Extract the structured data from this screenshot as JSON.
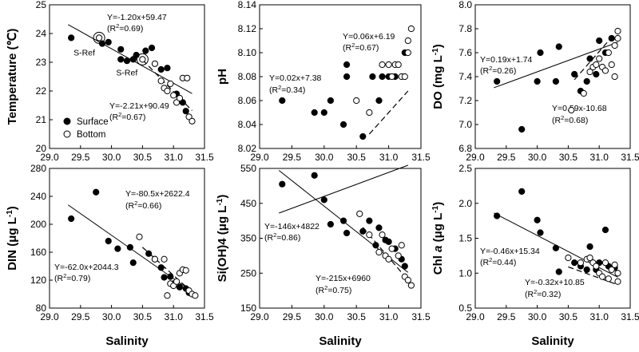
{
  "figure": {
    "x_axis_label": "Salinity"
  },
  "chart_data": [
    {
      "type": "scatter",
      "panel": "temperature",
      "ylabel": "Temperature (℃)",
      "xlabel": "Salinity",
      "xlim": [
        29.0,
        31.5
      ],
      "ylim": [
        20,
        25
      ],
      "xticks": [
        "29.0",
        "29.5",
        "30.0",
        "30.5",
        "31.0",
        "31.5"
      ],
      "yticks": [
        "20",
        "21",
        "22",
        "23",
        "24",
        "25"
      ],
      "series": [
        {
          "name": "Surface",
          "marker": "filled",
          "points": [
            [
              29.35,
              23.85
            ],
            [
              29.85,
              23.65
            ],
            [
              29.95,
              23.7
            ],
            [
              30.15,
              23.45
            ],
            [
              30.15,
              23.1
            ],
            [
              30.25,
              23.05
            ],
            [
              30.35,
              23.1
            ],
            [
              30.4,
              23.25
            ],
            [
              30.55,
              23.4
            ],
            [
              30.65,
              23.5
            ],
            [
              30.8,
              22.75
            ],
            [
              30.9,
              22.8
            ],
            [
              31.05,
              21.9
            ],
            [
              31.15,
              21.6
            ],
            [
              31.2,
              21.3
            ]
          ]
        },
        {
          "name": "Bottom",
          "marker": "open",
          "points": [
            [
              29.8,
              23.85
            ],
            [
              30.5,
              23.1
            ],
            [
              30.7,
              22.95
            ],
            [
              30.8,
              22.35
            ],
            [
              30.85,
              22.1
            ],
            [
              30.9,
              22.0
            ],
            [
              30.95,
              22.25
            ],
            [
              31.0,
              21.85
            ],
            [
              31.05,
              21.6
            ],
            [
              31.1,
              21.75
            ],
            [
              31.15,
              22.45
            ],
            [
              31.22,
              22.45
            ],
            [
              31.25,
              21.1
            ],
            [
              31.3,
              20.95
            ]
          ]
        }
      ],
      "fits": [
        {
          "series": "Surface",
          "style": "solid",
          "slope": -1.2,
          "intercept": 59.47,
          "x_range": [
            29.3,
            31.3
          ],
          "equation": "Y=-1.20x+59.47",
          "r2": "(R2=0.69)"
        },
        {
          "series": "Bottom",
          "style": "dashed",
          "slope": -2.21,
          "intercept": 90.49,
          "x_range": [
            30.5,
            31.3
          ],
          "equation": "Y=-2.21x+90.49",
          "r2": "(R2=0.67)"
        }
      ],
      "annotations": [
        {
          "text": "S-Ref",
          "x": 29.8,
          "y": 23.85
        },
        {
          "text": "S-Ref",
          "x": 30.5,
          "y": 23.1
        }
      ],
      "legend": {
        "position": "bottom-left",
        "items": [
          "Surface",
          "Bottom"
        ]
      }
    },
    {
      "type": "scatter",
      "panel": "ph",
      "ylabel": "pH",
      "xlabel": "Salinity",
      "xlim": [
        29.0,
        31.5
      ],
      "ylim": [
        8.02,
        8.14
      ],
      "xticks": [
        "29.0",
        "29.5",
        "30.0",
        "30.5",
        "31.0",
        "31.5"
      ],
      "yticks": [
        "8.02",
        "8.04",
        "8.06",
        "8.08",
        "8.10",
        "8.12",
        "8.14"
      ],
      "series": [
        {
          "name": "Surface",
          "marker": "filled",
          "points": [
            [
              29.35,
              8.06
            ],
            [
              29.85,
              8.05
            ],
            [
              30.0,
              8.05
            ],
            [
              30.1,
              8.06
            ],
            [
              30.3,
              8.04
            ],
            [
              30.35,
              8.09
            ],
            [
              30.35,
              8.08
            ],
            [
              30.6,
              8.03
            ],
            [
              30.75,
              8.08
            ],
            [
              30.85,
              8.06
            ],
            [
              30.9,
              8.08
            ],
            [
              31.0,
              8.08
            ],
            [
              31.1,
              8.08
            ],
            [
              31.25,
              8.1
            ]
          ]
        },
        {
          "name": "Bottom",
          "marker": "open",
          "points": [
            [
              30.5,
              8.06
            ],
            [
              30.7,
              8.05
            ],
            [
              30.9,
              8.09
            ],
            [
              31.0,
              8.09
            ],
            [
              31.05,
              8.08
            ],
            [
              31.1,
              8.09
            ],
            [
              31.15,
              8.09
            ],
            [
              31.2,
              8.08
            ],
            [
              31.25,
              8.08
            ],
            [
              31.3,
              8.1
            ],
            [
              31.3,
              8.11
            ],
            [
              31.35,
              8.12
            ]
          ]
        }
      ],
      "fits": [
        {
          "series": "Surface",
          "style": "solid",
          "slope": 0.02,
          "intercept": 7.38,
          "x_range": [
            29.3,
            31.3
          ],
          "equation": "Y=0.02x+7.38",
          "r2": "(R2=0.34)"
        },
        {
          "series": "Bottom",
          "style": "dashed",
          "slope": 0.06,
          "intercept": 6.19,
          "x_range": [
            30.7,
            31.3
          ],
          "equation": "Y=0.06x+6.19",
          "r2": "(R2=0.67)"
        }
      ]
    },
    {
      "type": "scatter",
      "panel": "do",
      "ylabel": "DO (mg L-1)",
      "xlabel": "Salinity",
      "xlim": [
        29.0,
        31.5
      ],
      "ylim": [
        6.8,
        8.0
      ],
      "xticks": [
        "29.0",
        "29.5",
        "30.0",
        "30.5",
        "31.0",
        "31.5"
      ],
      "yticks": [
        "6.8",
        "7.0",
        "7.2",
        "7.4",
        "7.6",
        "7.8",
        "8.0"
      ],
      "series": [
        {
          "name": "Surface",
          "marker": "filled",
          "points": [
            [
              29.35,
              7.36
            ],
            [
              29.75,
              6.96
            ],
            [
              30.0,
              7.36
            ],
            [
              30.05,
              7.6
            ],
            [
              30.3,
              7.36
            ],
            [
              30.35,
              7.65
            ],
            [
              30.6,
              7.42
            ],
            [
              30.7,
              7.28
            ],
            [
              30.8,
              7.36
            ],
            [
              30.85,
              7.55
            ],
            [
              30.95,
              7.42
            ],
            [
              31.0,
              7.7
            ],
            [
              31.1,
              7.6
            ],
            [
              31.2,
              7.72
            ]
          ]
        },
        {
          "name": "Bottom",
          "marker": "open",
          "points": [
            [
              30.55,
              7.12
            ],
            [
              30.75,
              7.26
            ],
            [
              30.85,
              7.44
            ],
            [
              30.9,
              7.48
            ],
            [
              30.95,
              7.5
            ],
            [
              31.0,
              7.55
            ],
            [
              31.05,
              7.48
            ],
            [
              31.1,
              7.45
            ],
            [
              31.15,
              7.6
            ],
            [
              31.2,
              7.5
            ],
            [
              31.25,
              7.4
            ],
            [
              31.25,
              7.66
            ],
            [
              31.3,
              7.72
            ],
            [
              31.3,
              7.78
            ]
          ]
        }
      ],
      "fits": [
        {
          "series": "Surface",
          "style": "solid",
          "slope": 0.19,
          "intercept": 1.74,
          "x_range": [
            29.3,
            31.3
          ],
          "equation": "Y=0.19x+1.74",
          "r2": "(R2=0.26)"
        },
        {
          "series": "Bottom",
          "style": "dashed",
          "slope": 0.59,
          "intercept": -10.68,
          "x_range": [
            30.6,
            31.2
          ],
          "equation": "Y=0.59x-10.68",
          "r2": "(R2=0.68)"
        }
      ]
    },
    {
      "type": "scatter",
      "panel": "din",
      "ylabel": "DIN (μg L-1)",
      "xlabel": "Salinity",
      "xlim": [
        29.0,
        31.5
      ],
      "ylim": [
        80,
        280
      ],
      "xticks": [
        "29.0",
        "29.5",
        "30.0",
        "30.5",
        "31.0",
        "31.5"
      ],
      "yticks": [
        "80",
        "120",
        "160",
        "200",
        "240",
        "280"
      ],
      "series": [
        {
          "name": "Surface",
          "marker": "filled",
          "points": [
            [
              29.35,
              208
            ],
            [
              29.75,
              246
            ],
            [
              29.95,
              176
            ],
            [
              30.1,
              165
            ],
            [
              30.3,
              167
            ],
            [
              30.35,
              145
            ],
            [
              30.6,
              158
            ],
            [
              30.7,
              150
            ],
            [
              30.8,
              138
            ],
            [
              30.85,
              124
            ],
            [
              30.95,
              125
            ],
            [
              31.0,
              115
            ],
            [
              31.1,
              110
            ],
            [
              31.2,
              108
            ],
            [
              31.25,
              102
            ]
          ]
        },
        {
          "name": "Bottom",
          "marker": "open",
          "points": [
            [
              30.45,
              182
            ],
            [
              30.7,
              150
            ],
            [
              30.85,
              150
            ],
            [
              30.9,
              98
            ],
            [
              30.95,
              115
            ],
            [
              31.0,
              112
            ],
            [
              31.05,
              118
            ],
            [
              31.1,
              130
            ],
            [
              31.15,
              135
            ],
            [
              31.2,
              134
            ],
            [
              31.25,
              105
            ],
            [
              31.3,
              100
            ],
            [
              31.35,
              98
            ]
          ]
        }
      ],
      "fits": [
        {
          "series": "Surface",
          "style": "solid",
          "slope": -62.0,
          "intercept": 2044.3,
          "x_range": [
            29.3,
            31.3
          ],
          "equation": "Y=-62.0x+2044.3",
          "r2": "(R2=0.79)"
        },
        {
          "series": "Bottom",
          "style": "dashed",
          "slope": -80.5,
          "intercept": 2622.4,
          "x_range": [
            30.5,
            31.3
          ],
          "equation": "Y=-80.5x+2622.4",
          "r2": "(R2=0.66)"
        }
      ]
    },
    {
      "type": "scatter",
      "panel": "sioh4",
      "ylabel": "Si(OH)4 (μg L-1)",
      "xlabel": "Salinity",
      "xlim": [
        29.0,
        31.5
      ],
      "ylim": [
        150,
        550
      ],
      "xticks": [
        "29.0",
        "29.5",
        "30.0",
        "30.5",
        "31.0",
        "31.5"
      ],
      "yticks": [
        "150",
        "250",
        "350",
        "450",
        "550"
      ],
      "series": [
        {
          "name": "Surface",
          "marker": "filled",
          "points": [
            [
              29.35,
              505
            ],
            [
              29.85,
              530
            ],
            [
              30.0,
              460
            ],
            [
              30.1,
              390
            ],
            [
              30.3,
              400
            ],
            [
              30.35,
              365
            ],
            [
              30.6,
              370
            ],
            [
              30.7,
              400
            ],
            [
              30.8,
              330
            ],
            [
              30.85,
              380
            ],
            [
              30.95,
              345
            ],
            [
              31.0,
              340
            ],
            [
              31.1,
              320
            ],
            [
              31.2,
              290
            ],
            [
              31.25,
              270
            ]
          ]
        },
        {
          "name": "Bottom",
          "marker": "open",
          "points": [
            [
              30.55,
              420
            ],
            [
              30.7,
              360
            ],
            [
              30.85,
              310
            ],
            [
              30.9,
              360
            ],
            [
              30.95,
              300
            ],
            [
              31.0,
              290
            ],
            [
              31.05,
              320
            ],
            [
              31.15,
              300
            ],
            [
              31.2,
              330
            ],
            [
              31.25,
              240
            ],
            [
              31.3,
              230
            ],
            [
              31.35,
              215
            ]
          ]
        }
      ],
      "fits": [
        {
          "series": "Surface",
          "style": "solid",
          "slope": -146,
          "intercept": 4822,
          "x_range": [
            29.3,
            31.3
          ],
          "equation": "Y=-146x+4822",
          "r2": "(R2=0.86)"
        },
        {
          "series": "Bottom",
          "style": "dashed",
          "slope": -215,
          "intercept": 6960,
          "x_range": [
            30.6,
            31.35
          ],
          "equation": "Y=-215x+6960",
          "r2": "(R2=0.75)"
        }
      ]
    },
    {
      "type": "scatter",
      "panel": "chla",
      "ylabel": "Chl a (μg L-1)",
      "xlabel": "Salinity",
      "xlim": [
        29.0,
        31.5
      ],
      "ylim": [
        0.5,
        2.5
      ],
      "xticks": [
        "29.0",
        "29.5",
        "30.0",
        "30.5",
        "31.0",
        "31.5"
      ],
      "yticks": [
        "0.5",
        "1.0",
        "1.5",
        "2.0",
        "2.5"
      ],
      "series": [
        {
          "name": "Surface",
          "marker": "filled",
          "points": [
            [
              29.35,
              1.82
            ],
            [
              29.75,
              2.17
            ],
            [
              30.0,
              1.76
            ],
            [
              30.05,
              1.58
            ],
            [
              30.3,
              1.36
            ],
            [
              30.35,
              1.02
            ],
            [
              30.6,
              1.15
            ],
            [
              30.7,
              1.1
            ],
            [
              30.8,
              1.05
            ],
            [
              30.85,
              1.38
            ],
            [
              30.95,
              1.05
            ],
            [
              31.0,
              1.15
            ],
            [
              31.1,
              1.62
            ],
            [
              31.15,
              1.1
            ],
            [
              31.25,
              1.08
            ]
          ]
        },
        {
          "name": "Bottom",
          "marker": "open",
          "points": [
            [
              30.5,
              1.22
            ],
            [
              30.7,
              1.15
            ],
            [
              30.8,
              1.2
            ],
            [
              30.85,
              1.22
            ],
            [
              30.9,
              1.15
            ],
            [
              30.95,
              1.1
            ],
            [
              31.0,
              1.0
            ],
            [
              31.05,
              0.95
            ],
            [
              31.1,
              1.15
            ],
            [
              31.15,
              0.92
            ],
            [
              31.2,
              1.05
            ],
            [
              31.25,
              1.12
            ],
            [
              31.3,
              1.0
            ],
            [
              31.3,
              0.88
            ]
          ]
        }
      ],
      "fits": [
        {
          "series": "Surface",
          "style": "solid",
          "slope": -0.46,
          "intercept": 15.34,
          "x_range": [
            29.3,
            31.3
          ],
          "equation": "Y=-0.46x+15.34",
          "r2": "(R2=0.44)"
        },
        {
          "series": "Bottom",
          "style": "dashed",
          "slope": -0.32,
          "intercept": 10.85,
          "x_range": [
            30.5,
            31.3
          ],
          "equation": "Y=-0.32x+10.85",
          "r2": "(R2=0.32)"
        }
      ]
    }
  ]
}
